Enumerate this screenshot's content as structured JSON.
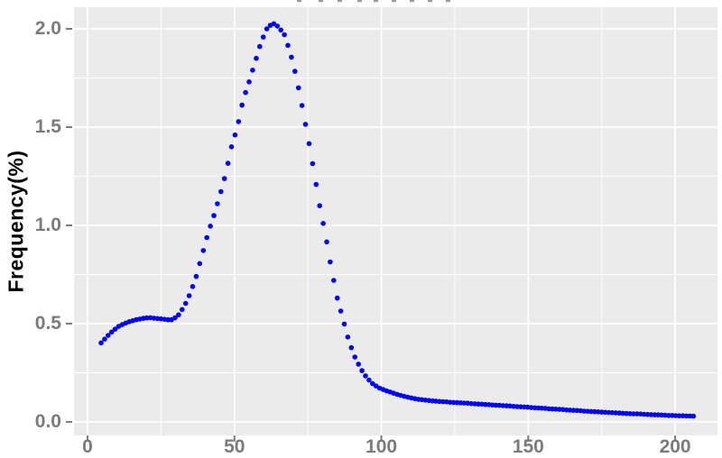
{
  "chart_data": {
    "type": "scatter",
    "ylabel": "Frequency(%)",
    "xlabel": "",
    "point_color": "#0000FF",
    "panel_bg": "#EBEBEB",
    "grid_color": "#FFFFFF",
    "tick_color": "#7B7B7B",
    "tick_label_color": "#7B7B7B",
    "axis_title_color": "#000000",
    "grid": true,
    "legend": false,
    "xlim": [
      -4.6,
      214.4
    ],
    "ylim": [
      -0.069,
      2.11
    ],
    "x_ticks": {
      "values": [
        0,
        50,
        100,
        150,
        200
      ],
      "labels": [
        "0",
        "50",
        "100",
        "150",
        "200"
      ]
    },
    "y_ticks": {
      "values": [
        0,
        0.5,
        1.0,
        1.5,
        2.0
      ],
      "labels": [
        "0.0",
        "0.5",
        "1.0",
        "1.5",
        "2.0"
      ]
    },
    "x_minor_ticks": [
      25,
      75,
      125,
      175
    ],
    "y_minor_ticks": [
      0.25,
      0.75,
      1.25,
      1.75
    ],
    "points": [
      [
        4.6,
        0.402
      ],
      [
        5.8,
        0.421
      ],
      [
        7.0,
        0.44
      ],
      [
        8.2,
        0.457
      ],
      [
        9.4,
        0.472
      ],
      [
        10.6,
        0.486
      ],
      [
        11.8,
        0.495
      ],
      [
        13.0,
        0.503
      ],
      [
        14.2,
        0.51
      ],
      [
        15.4,
        0.515
      ],
      [
        16.6,
        0.52
      ],
      [
        17.8,
        0.523
      ],
      [
        19.0,
        0.527
      ],
      [
        20.2,
        0.529
      ],
      [
        21.4,
        0.53
      ],
      [
        22.6,
        0.528
      ],
      [
        23.8,
        0.526
      ],
      [
        25.0,
        0.524
      ],
      [
        26.2,
        0.522
      ],
      [
        27.4,
        0.52
      ],
      [
        28.6,
        0.52
      ],
      [
        29.8,
        0.53
      ],
      [
        31.0,
        0.545
      ],
      [
        32.2,
        0.572
      ],
      [
        33.4,
        0.603
      ],
      [
        34.6,
        0.642
      ],
      [
        35.8,
        0.689
      ],
      [
        37.0,
        0.74
      ],
      [
        38.2,
        0.806
      ],
      [
        39.4,
        0.872
      ],
      [
        40.6,
        0.938
      ],
      [
        41.8,
        0.996
      ],
      [
        43.0,
        1.05
      ],
      [
        44.2,
        1.11
      ],
      [
        45.4,
        1.172
      ],
      [
        46.6,
        1.238
      ],
      [
        47.8,
        1.316
      ],
      [
        49.0,
        1.4
      ],
      [
        50.2,
        1.46
      ],
      [
        51.4,
        1.528
      ],
      [
        52.6,
        1.612
      ],
      [
        53.8,
        1.676
      ],
      [
        55.0,
        1.73
      ],
      [
        56.2,
        1.79
      ],
      [
        57.4,
        1.85
      ],
      [
        58.6,
        1.91
      ],
      [
        59.8,
        1.958
      ],
      [
        61.0,
        2.0
      ],
      [
        62.2,
        2.018
      ],
      [
        63.4,
        2.026
      ],
      [
        64.6,
        2.014
      ],
      [
        65.8,
        1.994
      ],
      [
        67.0,
        1.97
      ],
      [
        68.2,
        1.916
      ],
      [
        69.4,
        1.856
      ],
      [
        70.6,
        1.784
      ],
      [
        71.8,
        1.7
      ],
      [
        73.0,
        1.61
      ],
      [
        74.2,
        1.514
      ],
      [
        75.4,
        1.416
      ],
      [
        76.6,
        1.314
      ],
      [
        77.8,
        1.208
      ],
      [
        79.0,
        1.1
      ],
      [
        80.2,
        1.01
      ],
      [
        81.4,
        0.916
      ],
      [
        82.6,
        0.814
      ],
      [
        83.8,
        0.72
      ],
      [
        85.0,
        0.63
      ],
      [
        86.2,
        0.564
      ],
      [
        87.4,
        0.498
      ],
      [
        88.6,
        0.432
      ],
      [
        89.8,
        0.378
      ],
      [
        91.0,
        0.33
      ],
      [
        92.2,
        0.294
      ],
      [
        93.4,
        0.261
      ],
      [
        94.6,
        0.234
      ],
      [
        95.8,
        0.213
      ],
      [
        97.0,
        0.195
      ],
      [
        98.2,
        0.183
      ],
      [
        99.4,
        0.172
      ],
      [
        100.6,
        0.165
      ],
      [
        101.8,
        0.158
      ],
      [
        103.0,
        0.152
      ],
      [
        104.2,
        0.146
      ],
      [
        105.4,
        0.14
      ],
      [
        106.6,
        0.135
      ],
      [
        107.8,
        0.13
      ],
      [
        109.0,
        0.126
      ],
      [
        110.2,
        0.122
      ],
      [
        111.4,
        0.118
      ],
      [
        112.6,
        0.115
      ],
      [
        113.8,
        0.113
      ],
      [
        115.0,
        0.111
      ],
      [
        116.2,
        0.109
      ],
      [
        117.4,
        0.107
      ],
      [
        118.6,
        0.106
      ],
      [
        119.8,
        0.104
      ],
      [
        121.0,
        0.103
      ],
      [
        122.2,
        0.102
      ],
      [
        123.4,
        0.1
      ],
      [
        124.6,
        0.099
      ],
      [
        125.8,
        0.098
      ],
      [
        127.0,
        0.097
      ],
      [
        128.2,
        0.096
      ],
      [
        129.4,
        0.095
      ],
      [
        130.6,
        0.093
      ],
      [
        131.8,
        0.092
      ],
      [
        133.0,
        0.091
      ],
      [
        134.2,
        0.09
      ],
      [
        135.4,
        0.089
      ],
      [
        136.6,
        0.088
      ],
      [
        137.8,
        0.086
      ],
      [
        139.0,
        0.085
      ],
      [
        140.2,
        0.084
      ],
      [
        141.4,
        0.083
      ],
      [
        142.6,
        0.082
      ],
      [
        143.8,
        0.081
      ],
      [
        145.0,
        0.079
      ],
      [
        146.2,
        0.078
      ],
      [
        147.4,
        0.077
      ],
      [
        148.6,
        0.076
      ],
      [
        149.8,
        0.075
      ],
      [
        151.0,
        0.073
      ],
      [
        152.2,
        0.072
      ],
      [
        153.4,
        0.071
      ],
      [
        154.6,
        0.07
      ],
      [
        155.8,
        0.069
      ],
      [
        157.0,
        0.067
      ],
      [
        158.2,
        0.066
      ],
      [
        159.4,
        0.065
      ],
      [
        160.6,
        0.064
      ],
      [
        161.8,
        0.063
      ],
      [
        163.0,
        0.061
      ],
      [
        164.2,
        0.06
      ],
      [
        165.4,
        0.059
      ],
      [
        166.6,
        0.058
      ],
      [
        167.8,
        0.057
      ],
      [
        169.0,
        0.055
      ],
      [
        170.2,
        0.054
      ],
      [
        171.4,
        0.053
      ],
      [
        172.6,
        0.052
      ],
      [
        173.8,
        0.051
      ],
      [
        175.0,
        0.05
      ],
      [
        176.2,
        0.049
      ],
      [
        177.4,
        0.048
      ],
      [
        178.6,
        0.047
      ],
      [
        179.8,
        0.046
      ],
      [
        181.0,
        0.045
      ],
      [
        182.2,
        0.044
      ],
      [
        183.4,
        0.043
      ],
      [
        184.6,
        0.042
      ],
      [
        185.8,
        0.041
      ],
      [
        187.0,
        0.041
      ],
      [
        188.2,
        0.04
      ],
      [
        189.4,
        0.039
      ],
      [
        190.6,
        0.038
      ],
      [
        191.8,
        0.037
      ],
      [
        193.0,
        0.036
      ],
      [
        194.2,
        0.036
      ],
      [
        195.4,
        0.035
      ],
      [
        196.6,
        0.034
      ],
      [
        197.8,
        0.033
      ],
      [
        199.0,
        0.033
      ],
      [
        200.2,
        0.032
      ],
      [
        201.4,
        0.031
      ],
      [
        202.6,
        0.031
      ],
      [
        203.8,
        0.03
      ],
      [
        205.0,
        0.03
      ],
      [
        206.2,
        0.029
      ]
    ]
  }
}
